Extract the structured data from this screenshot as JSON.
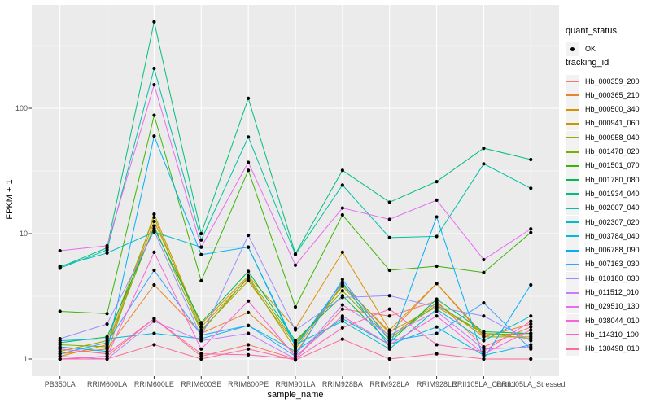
{
  "figure": {
    "background": "#FFFFFF",
    "panel_background": "#EBEBEB",
    "grid_color": "#FFFFFF",
    "tick_color": "#333333",
    "tick_label_color": "#4D4D4D",
    "point_color": "#000000"
  },
  "axes": {
    "x": {
      "title": "sample_name"
    },
    "y": {
      "title": "FPKM + 1",
      "tick_labels": [
        "1",
        "10",
        "100"
      ],
      "tick_values": [
        1,
        10,
        100
      ],
      "minor_values": [
        3.162,
        31.62,
        316.2
      ],
      "scale": "log10"
    }
  },
  "legend": {
    "quant_status_title": "quant_status",
    "ok_label": "OK",
    "tracking_id_title": "tracking_id"
  },
  "chart_data": {
    "type": "line",
    "title": "",
    "xlabel": "sample_name",
    "ylabel": "FPKM + 1",
    "yscale": "log10",
    "ylim": [
      0.73,
      668
    ],
    "grid": true,
    "legend_position": "right",
    "categories": [
      "PB350LA",
      "RRIM600LA",
      "RRIM600LE",
      "RRIM600SE",
      "RRIM600PE",
      "RRIM901LA",
      "RRIM928BA",
      "RRIM928LA",
      "RRIM928LE",
      "RRII105LA_Control",
      "RRII105LA_Stressed"
    ],
    "series": [
      {
        "name": "Hb_000359_200",
        "color": "#F8766D",
        "values": [
          1.0,
          1.05,
          2.1,
          1.05,
          1.3,
          1.0,
          2.5,
          2.2,
          2.9,
          1.25,
          1.8
        ]
      },
      {
        "name": "Hb_000365_210",
        "color": "#EA8331",
        "values": [
          1.1,
          1.2,
          3.9,
          1.6,
          2.35,
          1.1,
          4.0,
          1.6,
          4.0,
          1.5,
          1.9
        ]
      },
      {
        "name": "Hb_000500_340",
        "color": "#D89000",
        "values": [
          1.05,
          1.3,
          12.5,
          1.9,
          4.6,
          1.75,
          7.1,
          1.7,
          4.0,
          1.55,
          1.6
        ]
      },
      {
        "name": "Hb_000941_060",
        "color": "#C09B00",
        "values": [
          1.2,
          1.1,
          14.3,
          1.8,
          4.4,
          1.2,
          3.9,
          1.65,
          2.6,
          1.6,
          1.45
        ]
      },
      {
        "name": "Hb_000958_040",
        "color": "#A3A500",
        "values": [
          1.15,
          1.4,
          13.5,
          1.7,
          4.2,
          1.3,
          3.8,
          1.5,
          2.8,
          1.5,
          1.5
        ]
      },
      {
        "name": "Hb_001478_020",
        "color": "#7CAE00",
        "values": [
          1.3,
          1.25,
          11.5,
          1.65,
          4.5,
          1.35,
          3.5,
          1.45,
          2.7,
          1.6,
          1.55
        ]
      },
      {
        "name": "Hb_001501_070",
        "color": "#39B600",
        "values": [
          2.4,
          2.3,
          88,
          4.2,
          32,
          2.6,
          14.1,
          5.1,
          5.5,
          4.9,
          10.2
        ]
      },
      {
        "name": "Hb_001780_080",
        "color": "#00BB4E",
        "values": [
          1.35,
          1.5,
          11.0,
          1.95,
          5.0,
          1.4,
          3.2,
          1.35,
          3.0,
          1.65,
          1.6
        ]
      },
      {
        "name": "Hb_001934_040",
        "color": "#00BF7D",
        "values": [
          5.4,
          7.7,
          490,
          10.0,
          120,
          6.9,
          32,
          17.8,
          26,
          48,
          39
        ]
      },
      {
        "name": "Hb_002007_040",
        "color": "#00C1A3",
        "values": [
          5.3,
          7.4,
          208,
          8.9,
          59,
          6.8,
          24.4,
          9.3,
          9.5,
          36,
          23
        ]
      },
      {
        "name": "Hb_002307_020",
        "color": "#00BFC4",
        "values": [
          5.5,
          7.0,
          10.3,
          7.8,
          7.8,
          1.3,
          2.0,
          1.2,
          2.5,
          1.4,
          2.2
        ]
      },
      {
        "name": "Hb_003784_040",
        "color": "#00BAE0",
        "values": [
          1.4,
          1.45,
          1.6,
          1.45,
          1.85,
          1.15,
          2.1,
          1.3,
          1.8,
          1.07,
          1.3
        ]
      },
      {
        "name": "Hb_006788_090",
        "color": "#00B0F6",
        "values": [
          1.25,
          1.15,
          60,
          6.8,
          7.8,
          1.25,
          4.1,
          1.25,
          13.6,
          1.0,
          3.9
        ]
      },
      {
        "name": "Hb_007163_030",
        "color": "#35A2FF",
        "values": [
          1.1,
          1.35,
          5.1,
          1.55,
          1.85,
          1.05,
          4.3,
          1.4,
          1.6,
          2.8,
          1.2
        ]
      },
      {
        "name": "Hb_010180_030",
        "color": "#9590FF",
        "values": [
          1.45,
          1.9,
          10.5,
          1.5,
          9.7,
          1.7,
          3.1,
          3.2,
          2.6,
          2.2,
          1.4
        ]
      },
      {
        "name": "Hb_011512_010",
        "color": "#C77CFF",
        "values": [
          1.05,
          1.0,
          2.0,
          1.4,
          1.6,
          1.0,
          2.7,
          1.55,
          2.4,
          1.2,
          1.25
        ]
      },
      {
        "name": "Hb_029510_130",
        "color": "#E76BF3",
        "values": [
          7.3,
          8.0,
          154,
          7.8,
          37,
          5.6,
          16,
          13,
          18.5,
          6.2,
          10.9
        ]
      },
      {
        "name": "Hb_038044_010",
        "color": "#FA62DB",
        "values": [
          1.0,
          1.05,
          7.1,
          1.2,
          2.9,
          1.05,
          2.2,
          1.3,
          2.2,
          1.1,
          1.7
        ]
      },
      {
        "name": "Hb_114310_100",
        "color": "#FF62BC",
        "values": [
          1.2,
          1.1,
          2.1,
          1.1,
          1.08,
          1.0,
          1.77,
          2.5,
          1.3,
          1.15,
          2.0
        ]
      },
      {
        "name": "Hb_130498_010",
        "color": "#FF6A98",
        "values": [
          1.0,
          1.0,
          1.3,
          1.0,
          1.2,
          0.98,
          1.44,
          1.0,
          1.1,
          1.0,
          1.0
        ]
      }
    ]
  }
}
